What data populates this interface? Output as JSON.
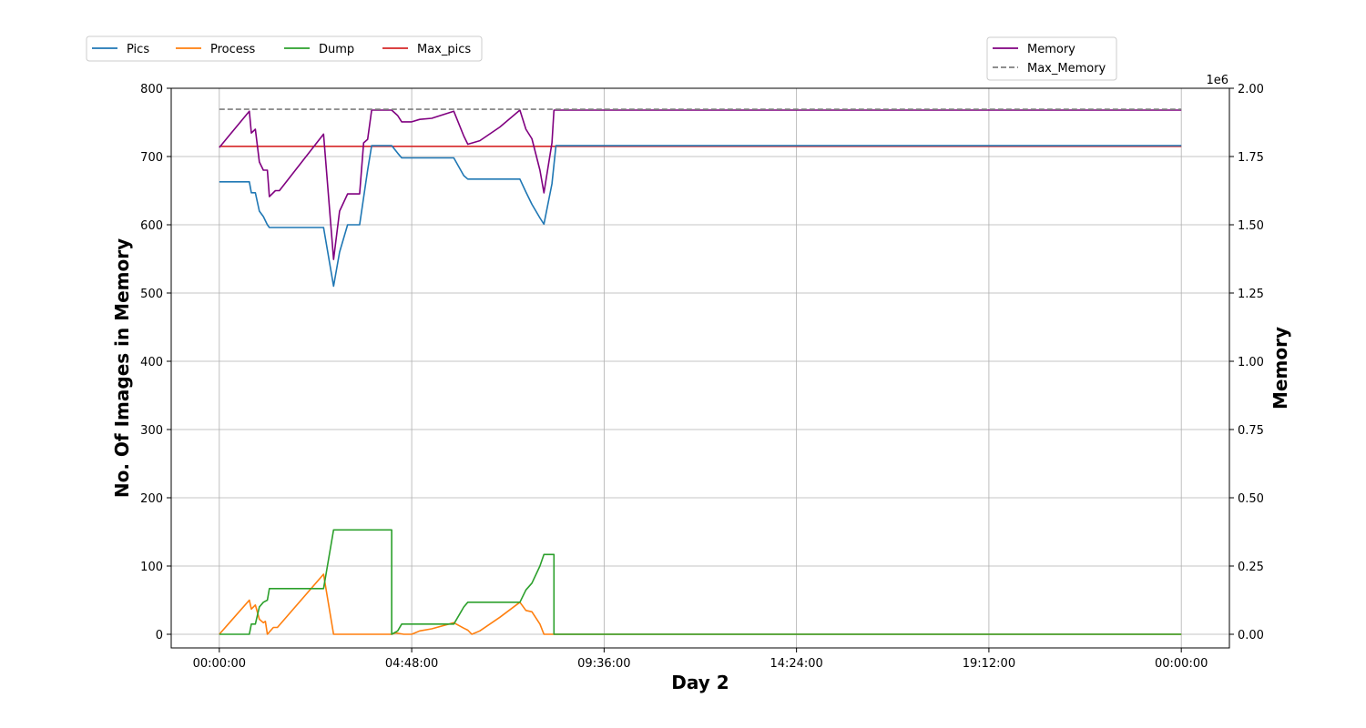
{
  "chart_data": {
    "type": "line",
    "xlabel": "Day 2",
    "ylabel": "No. Of Images in Memory",
    "ylabel_right": "Memory",
    "right_axis_multiplier": "1e6",
    "x_tick_labels": [
      "00:00:00",
      "04:48:00",
      "09:36:00",
      "14:24:00",
      "19:12:00",
      "00:00:00"
    ],
    "x_range_hours": [
      -1.2,
      25.2
    ],
    "x_tick_hours": [
      0,
      4.8,
      9.6,
      14.4,
      19.2,
      24
    ],
    "ylim": [
      -20,
      800
    ],
    "y_ticks": [
      0,
      100,
      200,
      300,
      400,
      500,
      600,
      700,
      800
    ],
    "ylim_right": [
      -50000,
      2000000
    ],
    "y_ticks_right": [
      0,
      250000,
      500000,
      750000,
      1000000,
      1250000,
      1500000,
      1750000,
      2000000
    ],
    "y_tick_labels_right": [
      "0.00",
      "0.25",
      "0.50",
      "0.75",
      "1.00",
      "1.25",
      "1.50",
      "1.75",
      "2.00"
    ],
    "grid": true,
    "legend_left": {
      "placement": "top-left",
      "entries": [
        "Pics",
        "Process",
        "Dump",
        "Max_pics"
      ]
    },
    "legend_right": {
      "placement": "top-right",
      "entries": [
        "Memory",
        "Max_Memory"
      ]
    },
    "series": [
      {
        "name": "Pics",
        "axis": "left",
        "color": "#1f77b4",
        "dash": "solid",
        "points": [
          [
            0,
            663
          ],
          [
            0.75,
            663
          ],
          [
            0.8,
            647
          ],
          [
            0.9,
            647
          ],
          [
            1.0,
            620
          ],
          [
            1.1,
            612
          ],
          [
            1.2,
            600
          ],
          [
            1.25,
            596
          ],
          [
            2.6,
            596
          ],
          [
            2.85,
            510
          ],
          [
            3.0,
            560
          ],
          [
            3.2,
            600
          ],
          [
            3.5,
            600
          ],
          [
            3.6,
            640
          ],
          [
            3.7,
            680
          ],
          [
            3.8,
            716
          ],
          [
            4.3,
            716
          ],
          [
            4.45,
            705
          ],
          [
            4.55,
            698
          ],
          [
            5.85,
            698
          ],
          [
            6.1,
            672
          ],
          [
            6.2,
            667
          ],
          [
            7.5,
            667
          ],
          [
            7.65,
            648
          ],
          [
            7.8,
            630
          ],
          [
            8.0,
            610
          ],
          [
            8.1,
            601
          ],
          [
            8.3,
            660
          ],
          [
            8.4,
            716
          ],
          [
            24,
            716
          ]
        ]
      },
      {
        "name": "Process",
        "axis": "left",
        "color": "#ff7f0e",
        "dash": "solid",
        "points": [
          [
            0,
            0
          ],
          [
            0.75,
            50
          ],
          [
            0.8,
            37
          ],
          [
            0.9,
            43
          ],
          [
            1.0,
            22
          ],
          [
            1.1,
            17
          ],
          [
            1.15,
            19
          ],
          [
            1.2,
            0
          ],
          [
            1.35,
            10
          ],
          [
            1.45,
            10
          ],
          [
            2.6,
            88
          ],
          [
            2.85,
            0
          ],
          [
            4.3,
            0
          ],
          [
            4.4,
            2
          ],
          [
            4.6,
            0
          ],
          [
            4.8,
            0
          ],
          [
            5.0,
            5
          ],
          [
            5.3,
            8
          ],
          [
            5.85,
            17
          ],
          [
            6.1,
            9
          ],
          [
            6.2,
            6
          ],
          [
            6.3,
            0
          ],
          [
            6.5,
            5
          ],
          [
            7.0,
            25
          ],
          [
            7.5,
            47
          ],
          [
            7.65,
            35
          ],
          [
            7.8,
            33
          ],
          [
            8.0,
            15
          ],
          [
            8.1,
            0
          ],
          [
            8.4,
            0
          ],
          [
            24,
            0
          ]
        ]
      },
      {
        "name": "Dump",
        "axis": "left",
        "color": "#2ca02c",
        "dash": "solid",
        "points": [
          [
            0,
            0
          ],
          [
            0.75,
            0
          ],
          [
            0.8,
            15
          ],
          [
            0.9,
            15
          ],
          [
            1.0,
            40
          ],
          [
            1.1,
            47
          ],
          [
            1.2,
            50
          ],
          [
            1.25,
            67
          ],
          [
            2.6,
            67
          ],
          [
            2.85,
            153
          ],
          [
            4.3,
            153
          ],
          [
            4.3,
            0
          ],
          [
            4.45,
            5
          ],
          [
            4.55,
            15
          ],
          [
            5.85,
            15
          ],
          [
            6.1,
            40
          ],
          [
            6.2,
            47
          ],
          [
            7.5,
            47
          ],
          [
            7.65,
            65
          ],
          [
            7.8,
            75
          ],
          [
            8.0,
            100
          ],
          [
            8.1,
            117
          ],
          [
            8.35,
            117
          ],
          [
            8.35,
            0
          ],
          [
            24,
            0
          ]
        ]
      },
      {
        "name": "Max_pics",
        "axis": "left",
        "color": "#d62728",
        "dash": "solid",
        "points": [
          [
            0,
            715
          ],
          [
            24,
            715
          ]
        ]
      },
      {
        "name": "Memory",
        "axis": "right",
        "color": "#800080",
        "dash": "solid",
        "points": [
          [
            0,
            1783000
          ],
          [
            0.75,
            1916000
          ],
          [
            0.8,
            1836000
          ],
          [
            0.9,
            1850000
          ],
          [
            1.0,
            1730000
          ],
          [
            1.1,
            1700000
          ],
          [
            1.2,
            1700000
          ],
          [
            1.25,
            1603000
          ],
          [
            1.4,
            1625000
          ],
          [
            1.5,
            1625000
          ],
          [
            2.6,
            1832000
          ],
          [
            2.85,
            1373000
          ],
          [
            3.0,
            1550000
          ],
          [
            3.2,
            1613000
          ],
          [
            3.5,
            1613000
          ],
          [
            3.6,
            1800000
          ],
          [
            3.7,
            1813000
          ],
          [
            3.8,
            1920000
          ],
          [
            4.3,
            1920000
          ],
          [
            4.45,
            1900000
          ],
          [
            4.55,
            1877000
          ],
          [
            4.8,
            1877000
          ],
          [
            5.0,
            1886000
          ],
          [
            5.3,
            1890000
          ],
          [
            5.85,
            1916000
          ],
          [
            6.1,
            1825000
          ],
          [
            6.2,
            1795000
          ],
          [
            6.5,
            1808000
          ],
          [
            7.0,
            1858000
          ],
          [
            7.5,
            1920000
          ],
          [
            7.65,
            1850000
          ],
          [
            7.8,
            1815000
          ],
          [
            8.0,
            1700000
          ],
          [
            8.1,
            1617000
          ],
          [
            8.3,
            1800000
          ],
          [
            8.35,
            1920000
          ],
          [
            24,
            1920000
          ]
        ]
      },
      {
        "name": "Max_Memory",
        "axis": "right",
        "color": "#7f7f7f",
        "dash": "dashed",
        "points": [
          [
            0,
            1923000
          ],
          [
            24,
            1923000
          ]
        ]
      }
    ]
  }
}
